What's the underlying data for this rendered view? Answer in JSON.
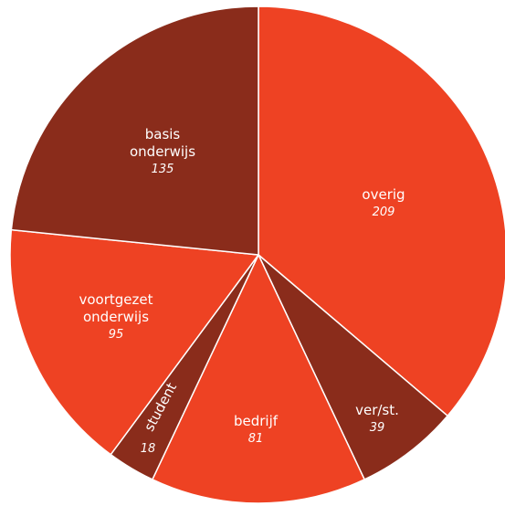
{
  "chart_data": {
    "type": "pie",
    "title": "",
    "slices": [
      {
        "name": "overig",
        "value": 209,
        "value_label": "209",
        "label_lines": [
          "overig"
        ],
        "color": "#EE4223"
      },
      {
        "name": "ver/st.",
        "value": 39,
        "value_label": "39",
        "label_lines": [
          "ver/st."
        ],
        "color": "#8A2C1B"
      },
      {
        "name": "bedrijf",
        "value": 81,
        "value_label": "81",
        "label_lines": [
          "bedrijf"
        ],
        "color": "#EE4223"
      },
      {
        "name": "student",
        "value": 18,
        "value_label": "18",
        "label_lines": [
          "student"
        ],
        "color": "#8A2C1B"
      },
      {
        "name": "voortgezet onderwijs",
        "value": 95,
        "value_label": "95",
        "label_lines": [
          "voortgezet",
          "onderwijs"
        ],
        "color": "#EE4223"
      },
      {
        "name": "basis onderwijs",
        "value": 135,
        "value_label": "135",
        "label_lines": [
          "basis",
          "onderwijs"
        ],
        "color": "#8A2C1B"
      }
    ]
  }
}
